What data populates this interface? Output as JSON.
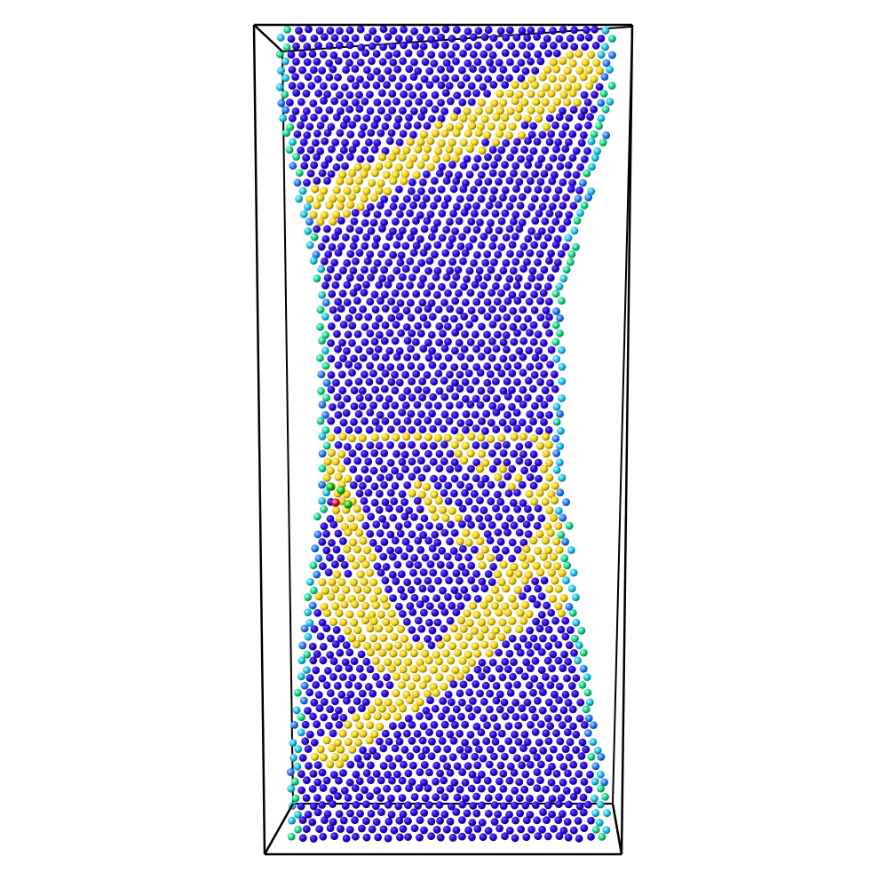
{
  "scene": {
    "kind": "atomistic-simulation-render",
    "description_visible": false,
    "background_color": "#ffffff",
    "box_color": "#000000",
    "atom_palette": {
      "bulk": "#2a00e0",
      "bulk_light": "#3c1ef0",
      "surface_blue": "#1e90ff",
      "surface_cyan": "#17c3e8",
      "surface_green": "#10d88a",
      "defect_yellow": "#f2cf0a",
      "defect_yellow_dark": "#c9a400",
      "green_atom": "#10c010",
      "red_atom": "#e01010"
    }
  }
}
